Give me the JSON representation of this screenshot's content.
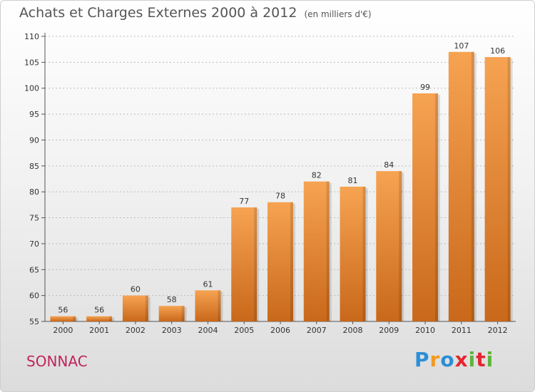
{
  "header": {
    "title": "Achats et Charges Externes 2000 à 2012",
    "subtitle": "(en milliers d'€)"
  },
  "footer": {
    "town": "SONNAC",
    "logo_text": "Proxiti"
  },
  "colors": {
    "bar_top": "#f6a352",
    "bar_bottom": "#c9681a",
    "town": "#c0245c",
    "grid": "#bbbbbb"
  },
  "chart_data": {
    "type": "bar",
    "title": "Achats et Charges Externes 2000 à 2012",
    "subtitle": "(en milliers d'€)",
    "xlabel": "",
    "ylabel": "",
    "categories": [
      "2000",
      "2001",
      "2002",
      "2003",
      "2004",
      "2005",
      "2006",
      "2007",
      "2008",
      "2009",
      "2010",
      "2011",
      "2012"
    ],
    "values": [
      56,
      56,
      60,
      58,
      61,
      77,
      78,
      82,
      81,
      84,
      99,
      107,
      106
    ],
    "ylim": [
      55,
      110
    ],
    "yticks": [
      55,
      60,
      65,
      70,
      75,
      80,
      85,
      90,
      95,
      100,
      105,
      110
    ],
    "grid": true,
    "grid_style": "dashed-horizontal",
    "legend": "none"
  }
}
